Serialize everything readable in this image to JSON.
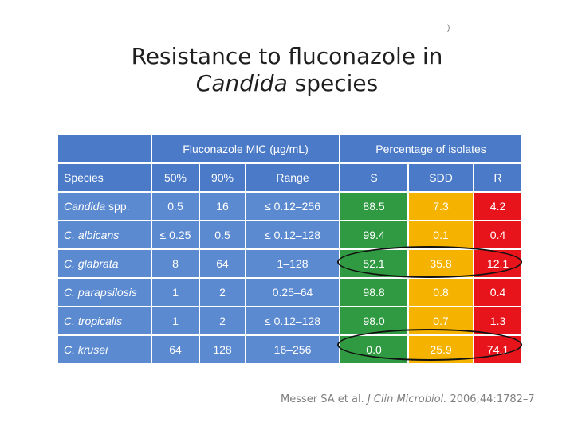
{
  "title": {
    "line1": "Resistance to fluconazole in",
    "line2_italic": "Candida",
    "line2_rest": " species"
  },
  "corner_mark": ")",
  "table": {
    "group_headers": {
      "mic": "Fluconazole MIC (µg/mL)",
      "pct": "Percentage of isolates"
    },
    "columns": [
      "Species",
      "50%",
      "90%",
      "Range",
      "S",
      "SDD",
      "R"
    ],
    "rows": [
      {
        "species_italic": "Candida",
        "species_rest": " spp.",
        "mic50": "0.5",
        "mic90": "16",
        "range": "≤ 0.12–256",
        "s": "88.5",
        "sdd": "7.3",
        "r": "4.2"
      },
      {
        "species_italic": "C. albicans",
        "species_rest": "",
        "mic50": "≤ 0.25",
        "mic90": "0.5",
        "range": "≤ 0.12–128",
        "s": "99.4",
        "sdd": "0.1",
        "r": "0.4"
      },
      {
        "species_italic": "C. glabrata",
        "species_rest": "",
        "mic50": "8",
        "mic90": "64",
        "range": "1–128",
        "s": "52.1",
        "sdd": "35.8",
        "r": "12.1"
      },
      {
        "species_italic": "C. parapsilosis",
        "species_rest": "",
        "mic50": "1",
        "mic90": "2",
        "range": "0.25–64",
        "s": "98.8",
        "sdd": "0.8",
        "r": "0.4"
      },
      {
        "species_italic": "C. tropicalis",
        "species_rest": "",
        "mic50": "1",
        "mic90": "2",
        "range": "≤ 0.12–128",
        "s": "98.0",
        "sdd": "0.7",
        "r": "1.3"
      },
      {
        "species_italic": "C. krusei",
        "species_rest": "",
        "mic50": "64",
        "mic90": "128",
        "range": "16–256",
        "s": "0.0",
        "sdd": "25.9",
        "r": "74.1"
      }
    ]
  },
  "citation": {
    "authors": "Messer SA et al. ",
    "journal_italic": "J Clin Microbiol.",
    "rest": " 2006;44:1782–7"
  },
  "colors": {
    "header_blue": "#4a7ac8",
    "cell_blue": "#5b8ad1",
    "susceptible_green": "#2f9a42",
    "sdd_orange": "#f5b300",
    "resistant_red": "#e8141c"
  }
}
